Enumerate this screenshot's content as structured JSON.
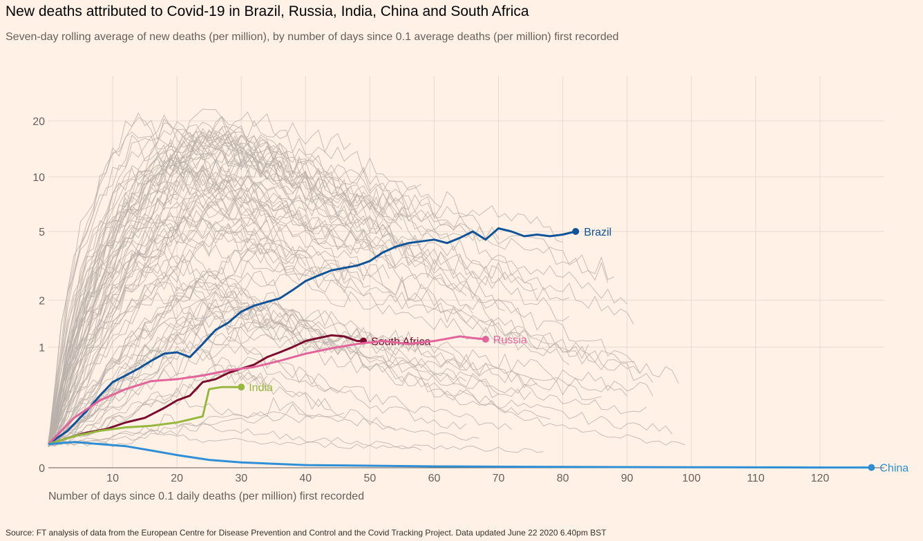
{
  "header": {
    "title": "New deaths attributed to Covid-19 in Brazil, Russia, India, China and South Africa",
    "subtitle": "Seven-day rolling average of new deaths (per million), by number of days since 0.1 average deaths (per million) first recorded"
  },
  "footer": {
    "source": "Source: FT analysis of data from the European Centre for Disease Prevention and Control and the Covid Tracking Project. Data updated June 22 2020 6.40pm BST"
  },
  "colors": {
    "background": "#fff1e5",
    "grid": "#e6dbd2",
    "others": "#b9b0aa",
    "Brazil": "#0f5499",
    "Russia": "#e3649a",
    "India": "#96b83f",
    "China": "#2e8fd6",
    "South Africa": "#7a0b2e"
  },
  "chart_data": {
    "type": "line",
    "xlabel": "Number of days since 0.1 daily deaths (per million) first recorded",
    "ylabel": "",
    "x_ticks": [
      10,
      20,
      30,
      40,
      50,
      60,
      70,
      80,
      90,
      100,
      110,
      120
    ],
    "y_ticks": [
      0,
      1,
      2,
      5,
      10,
      20
    ],
    "y_scale": "symlog",
    "xlim": [
      0,
      130
    ],
    "ylim": [
      0,
      25
    ],
    "grid": true,
    "legend": "direct labels at line ends",
    "highlighted_series": [
      {
        "name": "Brazil",
        "label": "Brazil",
        "x": [
          0,
          3,
          6,
          8,
          10,
          12,
          14,
          16,
          18,
          20,
          22,
          24,
          26,
          28,
          30,
          32,
          34,
          36,
          38,
          40,
          42,
          44,
          46,
          48,
          50,
          52,
          54,
          56,
          58,
          60,
          62,
          64,
          66,
          68,
          70,
          72,
          74,
          76,
          78,
          80,
          82
        ],
        "y": [
          0.1,
          0.17,
          0.3,
          0.42,
          0.55,
          0.62,
          0.7,
          0.8,
          0.9,
          0.92,
          0.85,
          1.05,
          1.3,
          1.45,
          1.7,
          1.85,
          1.95,
          2.05,
          2.3,
          2.6,
          2.8,
          3.0,
          3.1,
          3.2,
          3.4,
          3.8,
          4.1,
          4.3,
          4.4,
          4.5,
          4.3,
          4.6,
          5.0,
          4.5,
          5.2,
          5.0,
          4.7,
          4.8,
          4.7,
          4.8,
          5.0
        ]
      },
      {
        "name": "South Africa",
        "label": "South Africa",
        "x": [
          0,
          3,
          6,
          9,
          12,
          15,
          18,
          20,
          22,
          24,
          26,
          28,
          30,
          32,
          34,
          36,
          38,
          40,
          42,
          44,
          46,
          48,
          49
        ],
        "y": [
          0.1,
          0.13,
          0.16,
          0.18,
          0.22,
          0.25,
          0.32,
          0.38,
          0.42,
          0.55,
          0.58,
          0.65,
          0.7,
          0.75,
          0.85,
          0.92,
          1.0,
          1.1,
          1.15,
          1.2,
          1.18,
          1.1,
          1.1
        ]
      },
      {
        "name": "Russia",
        "label": "Russia",
        "x": [
          0,
          4,
          8,
          12,
          16,
          20,
          24,
          28,
          32,
          36,
          40,
          44,
          48,
          52,
          56,
          60,
          64,
          66,
          68
        ],
        "y": [
          0.1,
          0.25,
          0.38,
          0.48,
          0.56,
          0.58,
          0.62,
          0.68,
          0.72,
          0.8,
          0.9,
          0.98,
          1.05,
          1.1,
          1.05,
          1.1,
          1.18,
          1.15,
          1.13
        ]
      },
      {
        "name": "India",
        "label": "India",
        "x": [
          0,
          4,
          8,
          12,
          16,
          20,
          24,
          25,
          27,
          30
        ],
        "y": [
          0.1,
          0.14,
          0.17,
          0.19,
          0.2,
          0.22,
          0.26,
          0.48,
          0.5,
          0.5
        ]
      },
      {
        "name": "China",
        "label": "China",
        "x": [
          0,
          4,
          8,
          12,
          16,
          20,
          25,
          30,
          40,
          60,
          80,
          100,
          120,
          128
        ],
        "y": [
          0.1,
          0.11,
          0.1,
          0.09,
          0.07,
          0.05,
          0.03,
          0.02,
          0.01,
          0.005,
          0.003,
          0.002,
          0.001,
          0.001
        ]
      }
    ]
  }
}
